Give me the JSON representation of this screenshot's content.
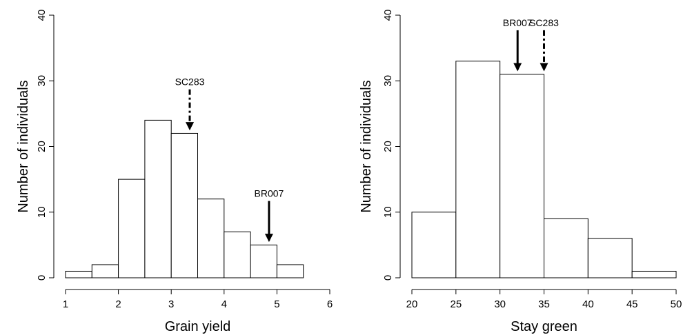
{
  "chart_data": [
    {
      "type": "histogram",
      "xlabel": "Grain yield",
      "ylabel": "Number of individuals",
      "bins": [
        1,
        1.5,
        2,
        2.5,
        3,
        3.5,
        4,
        4.5,
        5,
        5.5
      ],
      "values": [
        1,
        2,
        15,
        24,
        22,
        12,
        7,
        5,
        2
      ],
      "xlim": [
        1,
        6
      ],
      "xticks": [
        1,
        2,
        3,
        4,
        5,
        6
      ],
      "ylim": [
        0,
        40
      ],
      "yticks": [
        0,
        10,
        20,
        30,
        40
      ],
      "color": "#ffffff",
      "annotations": [
        {
          "text": "SC283",
          "x": 3.35,
          "style": "dashed"
        },
        {
          "text": "BR007",
          "x": 4.85,
          "style": "solid"
        }
      ]
    },
    {
      "type": "histogram",
      "xlabel": "Stay green",
      "ylabel": "Number of individuals",
      "bins": [
        20,
        25,
        30,
        35,
        40,
        45,
        50
      ],
      "values": [
        10,
        33,
        31,
        9,
        6,
        1
      ],
      "xlim": [
        20,
        50
      ],
      "xticks": [
        20,
        25,
        30,
        35,
        40,
        45,
        50
      ],
      "ylim": [
        0,
        40
      ],
      "yticks": [
        0,
        10,
        20,
        30,
        40
      ],
      "color": "#ffffff",
      "annotations": [
        {
          "text": "BR007",
          "x": 32,
          "style": "solid"
        },
        {
          "text": "SC283",
          "x": 35,
          "style": "dashed"
        }
      ]
    }
  ]
}
